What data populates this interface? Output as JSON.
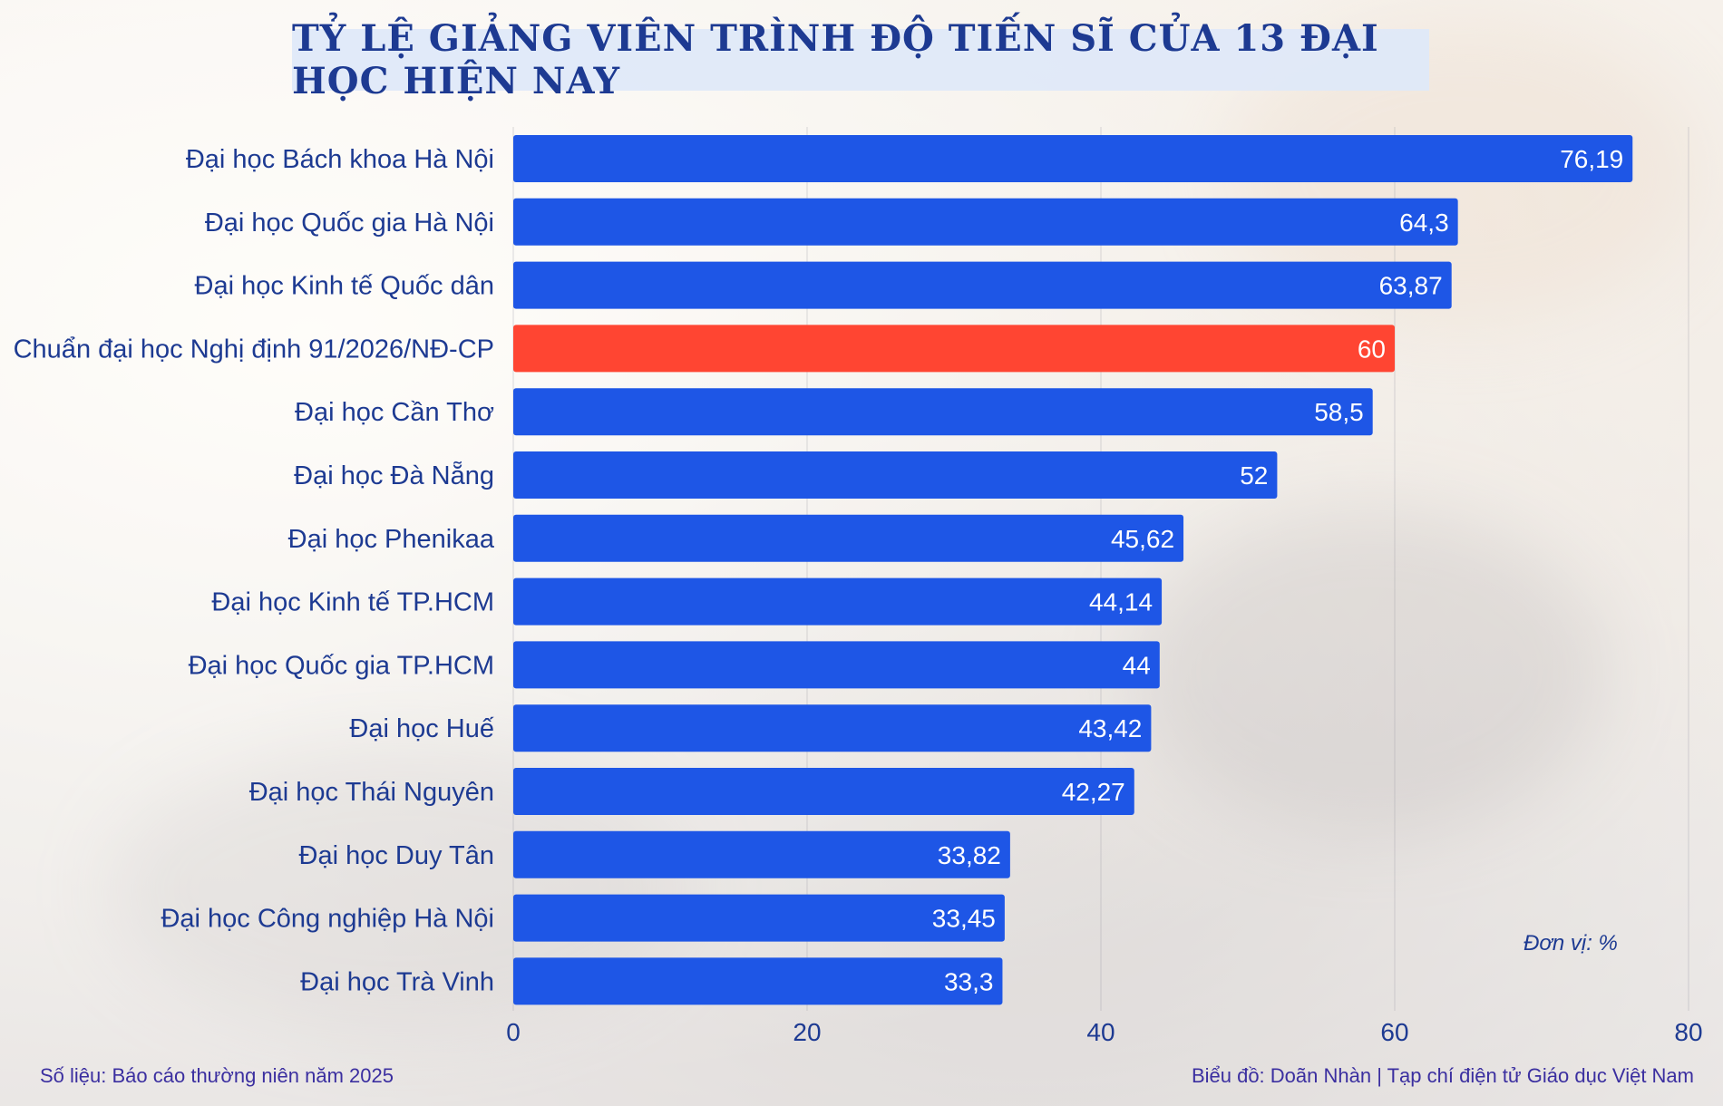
{
  "title": "TỶ LỆ GIẢNG VIÊN TRÌNH ĐỘ TIẾN SĨ CỦA 13 ĐẠI HỌC HIỆN NAY",
  "unit_label": "Đơn vị: %",
  "source_note": "Số liệu: Báo cáo thường niên năm 2025",
  "credit_note": "Biểu đồ: Doãn Nhàn | Tạp chí điện tử Giáo dục Việt Nam",
  "colors": {
    "bar": "#1e56e6",
    "highlight": "#ff4532",
    "label": "#1d3a92",
    "value_text": "#ffffff"
  },
  "chart_data": {
    "type": "bar",
    "orientation": "horizontal",
    "categories": [
      "Đại học Bách khoa Hà Nội",
      "Đại học Quốc gia Hà Nội",
      "Đại học Kinh tế Quốc dân",
      "Chuẩn đại học Nghị định 91/2026/NĐ-CP",
      "Đại học Cần Thơ",
      "Đại học Đà Nẵng",
      "Đại học Phenikaa",
      "Đại học Kinh tế TP.HCM",
      "Đại học Quốc gia TP.HCM",
      "Đại học Huế",
      "Đại học Thái Nguyên",
      "Đại học Duy Tân",
      "Đại học Công nghiệp Hà Nội",
      "Đại học Trà Vinh"
    ],
    "values": [
      76.19,
      64.3,
      63.87,
      60,
      58.5,
      52,
      45.62,
      44.14,
      44,
      43.42,
      42.27,
      33.82,
      33.45,
      33.3
    ],
    "value_labels": [
      "76,19",
      "64,3",
      "63,87",
      "60",
      "58,5",
      "52",
      "45,62",
      "44,14",
      "44",
      "43,42",
      "42,27",
      "33,82",
      "33,45",
      "33,3"
    ],
    "highlight_index": 3,
    "xlim": [
      0,
      80
    ],
    "xticks": [
      0,
      20,
      40,
      60,
      80
    ],
    "grid": true
  }
}
